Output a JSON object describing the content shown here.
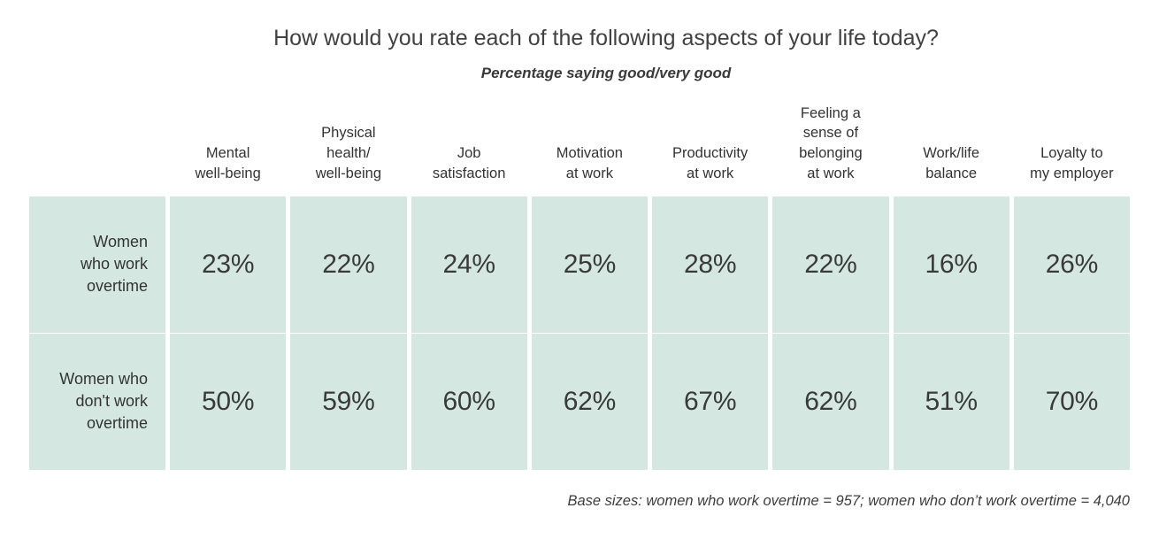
{
  "figure": {
    "title": "How would you rate each of the following aspects of your life today?",
    "subtitle": "Percentage saying good/very good",
    "base_note": "Base sizes: women who work overtime = 957; women who don’t work overtime = 4,040"
  },
  "colors": {
    "cell_background": "#d4e8e1",
    "title_text": "#414042",
    "body_text": "#333333"
  },
  "table": {
    "columns": [
      "Mental\nwell-being",
      "Physical\nhealth/\nwell-being",
      "Job\nsatisfaction",
      "Motivation\nat work",
      "Productivity\nat work",
      "Feeling a\nsense of\nbelonging\nat work",
      "Work/life\nbalance",
      "Loyalty to\nmy employer"
    ],
    "rows": [
      {
        "label": "Women\nwho work\novertime",
        "values": [
          "23%",
          "22%",
          "24%",
          "25%",
          "28%",
          "22%",
          "16%",
          "26%"
        ]
      },
      {
        "label": "Women who\ndon't work\novertime",
        "values": [
          "50%",
          "59%",
          "60%",
          "62%",
          "67%",
          "62%",
          "51%",
          "70%"
        ]
      }
    ]
  },
  "chart_data": {
    "type": "table",
    "title": "How would you rate each of the following aspects of your life today?",
    "subtitle": "Percentage saying good/very good",
    "unit": "percentage saying good/very good",
    "categories": [
      "Mental well-being",
      "Physical health/well-being",
      "Job satisfaction",
      "Motivation at work",
      "Productivity at work",
      "Feeling a sense of belonging at work",
      "Work/life balance",
      "Loyalty to my employer"
    ],
    "series": [
      {
        "name": "Women who work overtime",
        "base_size": 957,
        "values": [
          23,
          22,
          24,
          25,
          28,
          22,
          16,
          26
        ]
      },
      {
        "name": "Women who don't work overtime",
        "base_size": 4040,
        "values": [
          50,
          59,
          60,
          62,
          67,
          62,
          51,
          70
        ]
      }
    ],
    "note": "Base sizes: women who work overtime = 957; women who don’t work overtime = 4,040"
  }
}
